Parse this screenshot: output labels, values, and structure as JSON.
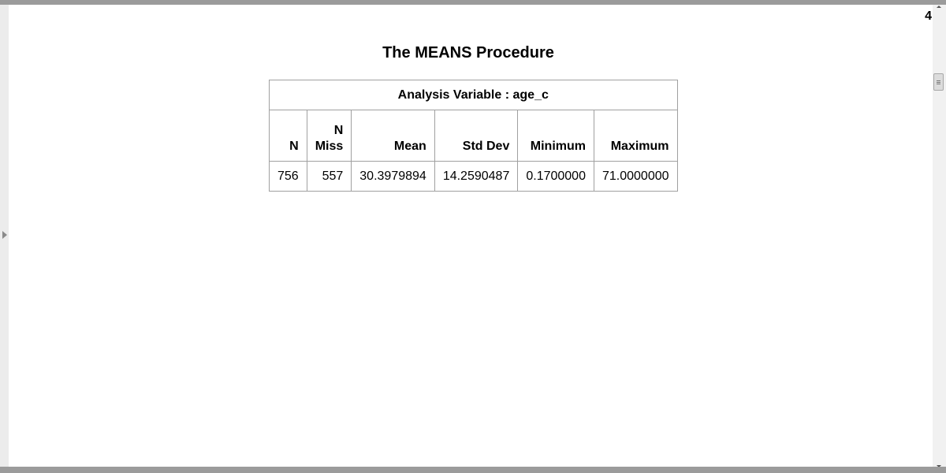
{
  "page": {
    "page_number": "4"
  },
  "procedure": {
    "title": "The MEANS Procedure"
  },
  "table": {
    "caption": "Analysis Variable : age_c",
    "headers": {
      "n": "N",
      "nmiss_line1": "N",
      "nmiss_line2": "Miss",
      "mean": "Mean",
      "std_dev": "Std Dev",
      "minimum": "Minimum",
      "maximum": "Maximum"
    },
    "row": {
      "n": "756",
      "nmiss": "557",
      "mean": "30.3979894",
      "std_dev": "14.2590487",
      "minimum": "0.1700000",
      "maximum": "71.0000000"
    }
  },
  "icons": {
    "left_expand": "triangle-right-icon",
    "scroll_up": "arrow-up-icon",
    "scroll_down": "arrow-down-icon",
    "scroll_thumb": "scroll-thumb-grip-icon"
  },
  "colors": {
    "border": "#a0a0a0",
    "frame_bar": "#9b9b9b"
  }
}
